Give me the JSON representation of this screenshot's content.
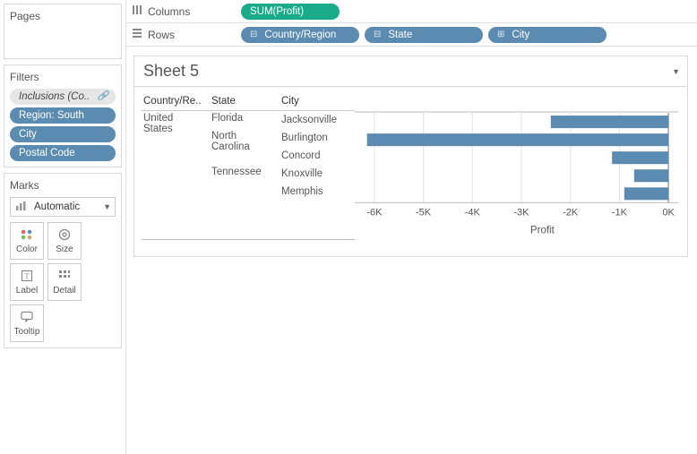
{
  "panels": {
    "pages": "Pages",
    "filters": "Filters",
    "marks": "Marks"
  },
  "filters": {
    "items": [
      {
        "label": "Inclusions (Co..",
        "variant": "gray",
        "hasLink": true
      },
      {
        "label": "Region: South",
        "variant": "blue",
        "hasLink": false
      },
      {
        "label": "City",
        "variant": "blue",
        "hasLink": false
      },
      {
        "label": "Postal Code",
        "variant": "blue",
        "hasLink": false
      }
    ]
  },
  "marks": {
    "dropdown": "Automatic",
    "buttons": [
      {
        "key": "color",
        "label": "Color"
      },
      {
        "key": "size",
        "label": "Size"
      },
      {
        "key": "label",
        "label": "Label"
      },
      {
        "key": "detail",
        "label": "Detail"
      },
      {
        "key": "tooltip",
        "label": "Tooltip"
      }
    ]
  },
  "shelves": {
    "columns": {
      "label": "Columns",
      "pills": [
        {
          "text": "SUM(Profit)",
          "color": "green"
        }
      ]
    },
    "rows": {
      "label": "Rows",
      "pills": [
        {
          "text": "Country/Region",
          "color": "dblue",
          "icon": "⊟"
        },
        {
          "text": "State",
          "color": "dblue",
          "icon": "⊟"
        },
        {
          "text": "City",
          "color": "dblue",
          "icon": "⊞"
        }
      ]
    }
  },
  "sheet": {
    "title": "Sheet 5",
    "headers": {
      "c1": "Country/Re..",
      "c2": "State",
      "c3": "City"
    },
    "axis": {
      "title": "Profit",
      "min": -6400,
      "max": 200,
      "ticks": [
        {
          "v": -6000,
          "label": "-6K"
        },
        {
          "v": -5000,
          "label": "-5K"
        },
        {
          "v": -4000,
          "label": "-4K"
        },
        {
          "v": -3000,
          "label": "-3K"
        },
        {
          "v": -2000,
          "label": "-2K"
        },
        {
          "v": -1000,
          "label": "-1K"
        },
        {
          "v": 0,
          "label": "0K"
        }
      ]
    },
    "rows": [
      {
        "country": "United States",
        "state": "Florida",
        "city": "Jacksonville",
        "value": -2400
      },
      {
        "country": "",
        "state": "North Carolina",
        "city": "Burlington",
        "value": -6150
      },
      {
        "country": "",
        "state": "",
        "city": "Concord",
        "value": -1150
      },
      {
        "country": "",
        "state": "Tennessee",
        "city": "Knoxville",
        "value": -700
      },
      {
        "country": "",
        "state": "",
        "city": "Memphis",
        "value": -900
      }
    ],
    "colors": {
      "bar": "#5b8bb0",
      "grid": "#e3e3e3",
      "axis": "#bbbbbb"
    }
  }
}
